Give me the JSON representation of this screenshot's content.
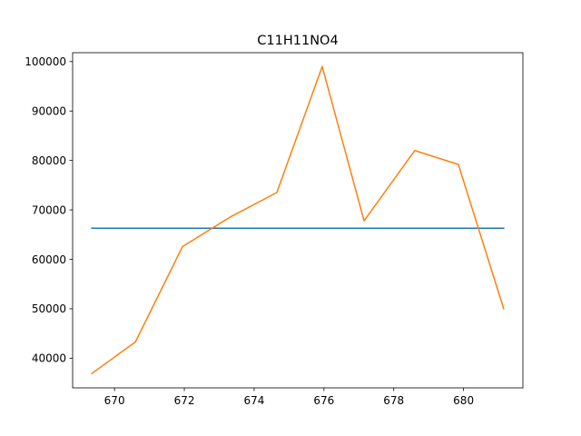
{
  "chart_data": {
    "type": "line",
    "title": "C11H11NO4",
    "xlabel": "",
    "ylabel": "",
    "xlim": [
      668.8,
      681.7
    ],
    "ylim": [
      34000,
      101800
    ],
    "x_ticks": [
      670,
      672,
      674,
      676,
      678,
      680
    ],
    "y_ticks": [
      40000,
      50000,
      60000,
      70000,
      80000,
      90000,
      100000
    ],
    "grid": false,
    "series": [
      {
        "color": "#1f77b4",
        "x": [
          669.35,
          681.15
        ],
        "y": [
          66300,
          66300
        ]
      },
      {
        "color": "#ff7f0e",
        "x": [
          669.35,
          670.6,
          671.95,
          673.35,
          674.65,
          675.95,
          677.15,
          678.6,
          679.85,
          681.15
        ],
        "y": [
          36900,
          43300,
          62600,
          68700,
          73500,
          99000,
          67800,
          82000,
          79200,
          50000
        ]
      }
    ]
  }
}
